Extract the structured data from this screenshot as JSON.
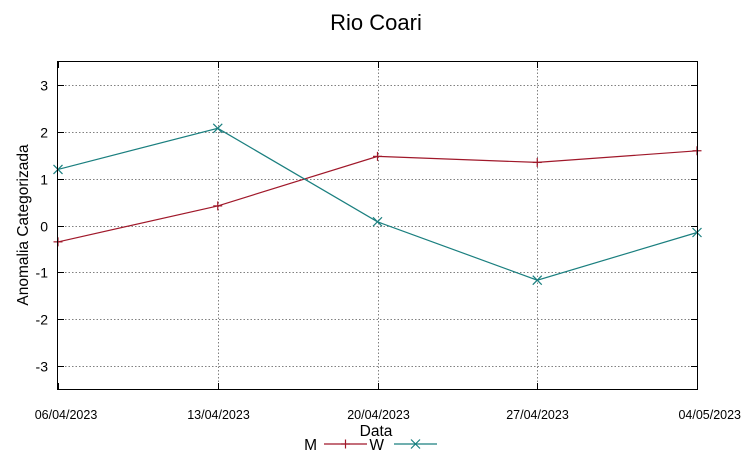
{
  "chart_data": {
    "type": "line",
    "title": "Rio Coari",
    "xlabel": "Data",
    "ylabel": "Anomalia Categorizada",
    "categories": [
      "06/04/2023",
      "13/04/2023",
      "20/04/2023",
      "27/04/2023",
      "04/05/2023"
    ],
    "ylim": [
      -3.5,
      3.5
    ],
    "yticks": [
      -3,
      -2,
      -1,
      0,
      1,
      2,
      3
    ],
    "grid": true,
    "legend": "bottom-center",
    "series": [
      {
        "name": "M",
        "color": "#a0182a",
        "marker": "plus",
        "values": [
          -0.35,
          0.42,
          1.48,
          1.35,
          1.6
        ]
      },
      {
        "name": "W",
        "color": "#1a7f7f",
        "marker": "cross",
        "values": [
          1.2,
          2.08,
          0.08,
          -1.17,
          -0.15
        ]
      }
    ]
  }
}
